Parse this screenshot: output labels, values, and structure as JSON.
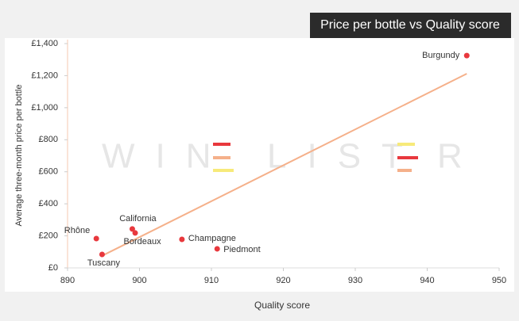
{
  "chart_data": {
    "type": "scatter",
    "title": "Price per bottle vs Quality score",
    "x_label": "Quality score",
    "y_label": "Average three-month price per bottle",
    "watermark": [
      "WIN",
      "LIST",
      "R"
    ],
    "series": [
      {
        "color": "#e8383d",
        "labels": [
          "Burgundy",
          "Rhône",
          "California",
          "Bordeaux",
          "Tuscany",
          "Champagne",
          "Piedmont"
        ],
        "x": [
          945.5,
          894,
          899,
          899.4,
          894.8,
          905.9,
          910.8
        ],
        "values": [
          1325,
          183,
          243,
          218,
          84,
          178,
          119
        ]
      }
    ],
    "trendline": {
      "color": "#f5b08a",
      "x": [
        895,
        945.5
      ],
      "y": [
        80,
        1212
      ]
    },
    "xlim": [
      890,
      950
    ],
    "xticks": [
      890,
      900,
      910,
      920,
      930,
      940,
      950
    ],
    "ylim": [
      0,
      1400
    ],
    "yticks": [
      {
        "value": 0,
        "label": "£0"
      },
      {
        "value": 200,
        "label": "£200"
      },
      {
        "value": 400,
        "label": "£400"
      },
      {
        "value": 600,
        "label": "£600"
      },
      {
        "value": 800,
        "label": "£800"
      },
      {
        "value": 1000,
        "label": "£1,000"
      },
      {
        "value": 1200,
        "label": "£1,200"
      },
      {
        "value": 1400,
        "label": "£1,400"
      }
    ],
    "grid": false
  }
}
